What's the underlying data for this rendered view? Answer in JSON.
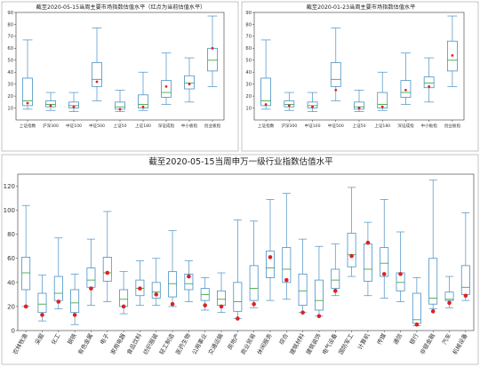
{
  "colors": {
    "box": "#4a90c4",
    "median": "#2ca02c",
    "mean": "#e02020",
    "axis": "#333333"
  },
  "chart_data": [
    {
      "type": "box",
      "title": "截至2020-05-15当周主要市场指数估值水平（红点为当前估值水平）",
      "xlabel": "",
      "ylabel": "",
      "ylim": [
        0,
        90
      ],
      "yticks": [
        10,
        20,
        30,
        40,
        50,
        60,
        70,
        80,
        90
      ],
      "grid": false,
      "categories": [
        "上证指数",
        "沪深300",
        "中证100",
        "中证500",
        "上证50",
        "上证180",
        "深证成指",
        "中小板指",
        "创业板指"
      ],
      "series": [
        {
          "min": 9,
          "q1": 12,
          "median": 16,
          "q3": 35,
          "max": 67,
          "mean": 14
        },
        {
          "min": 8,
          "q1": 11,
          "median": 13,
          "q3": 16,
          "max": 23,
          "mean": 12
        },
        {
          "min": 7,
          "q1": 10,
          "median": 12,
          "q3": 15,
          "max": 23,
          "mean": 11
        },
        {
          "min": 16,
          "q1": 28,
          "median": 34,
          "q3": 48,
          "max": 77,
          "mean": 32
        },
        {
          "min": 7,
          "q1": 9,
          "median": 11,
          "q3": 15,
          "max": 25,
          "mean": 9
        },
        {
          "min": 8,
          "q1": 10,
          "median": 13,
          "q3": 21,
          "max": 40,
          "mean": 11
        },
        {
          "min": 13,
          "q1": 19,
          "median": 23,
          "q3": 33,
          "max": 56,
          "mean": 28
        },
        {
          "min": 15,
          "q1": 26,
          "median": 31,
          "q3": 37,
          "max": 52,
          "mean": 30
        },
        {
          "min": 28,
          "q1": 41,
          "median": 50,
          "q3": 60,
          "max": 87,
          "mean": 60
        }
      ]
    },
    {
      "type": "box",
      "title": "截至2020-01-23当周主要市场指数估值水平",
      "xlabel": "",
      "ylabel": "",
      "ylim": [
        0,
        90
      ],
      "yticks": [
        10,
        20,
        30,
        40,
        50,
        60,
        70,
        80,
        90
      ],
      "grid": false,
      "categories": [
        "上证指数",
        "沪深300",
        "中证100",
        "中证500",
        "上证50",
        "上证180",
        "深证成指",
        "中小板指",
        "创业板指"
      ],
      "series": [
        {
          "min": 9,
          "q1": 12,
          "median": 16,
          "q3": 35,
          "max": 67,
          "mean": 13
        },
        {
          "min": 8,
          "q1": 11,
          "median": 13,
          "q3": 16,
          "max": 23,
          "mean": 12
        },
        {
          "min": 7,
          "q1": 10,
          "median": 12,
          "q3": 15,
          "max": 23,
          "mean": 11
        },
        {
          "min": 16,
          "q1": 28,
          "median": 34,
          "q3": 48,
          "max": 77,
          "mean": 25
        },
        {
          "min": 7,
          "q1": 9,
          "median": 11,
          "q3": 15,
          "max": 25,
          "mean": 10
        },
        {
          "min": 8,
          "q1": 10,
          "median": 13,
          "q3": 23,
          "max": 40,
          "mean": 11
        },
        {
          "min": 13,
          "q1": 19,
          "median": 23,
          "q3": 33,
          "max": 56,
          "mean": 25
        },
        {
          "min": 15,
          "q1": 27,
          "median": 31,
          "q3": 36,
          "max": 52,
          "mean": 28
        },
        {
          "min": 28,
          "q1": 41,
          "median": 50,
          "q3": 66,
          "max": 87,
          "mean": 54
        }
      ]
    },
    {
      "type": "box",
      "title": "截至2020-05-15当周申万一级行业指数估值水平",
      "xlabel": "",
      "ylabel": "",
      "ylim": [
        0,
        130
      ],
      "yticks": [
        0,
        20,
        40,
        60,
        80,
        100,
        120
      ],
      "grid": false,
      "categories": [
        "农林牧渔",
        "采掘",
        "化工",
        "钢铁",
        "有色金属",
        "电子",
        "家用电器",
        "食品饮料",
        "纺织服装",
        "轻工制造",
        "医药生物",
        "公用事业",
        "交通运输",
        "房地产",
        "商业贸易",
        "休闲服务",
        "综合",
        "建筑材料",
        "建筑装饰",
        "电气设备",
        "国防军工",
        "计算机",
        "传媒",
        "通信",
        "银行",
        "非银金融",
        "汽车",
        "机械设备"
      ],
      "series": [
        {
          "min": 20,
          "q1": 34,
          "median": 48,
          "q3": 61,
          "max": 104,
          "mean": 20
        },
        {
          "min": 8,
          "q1": 15,
          "median": 22,
          "q3": 31,
          "max": 46,
          "mean": 13
        },
        {
          "min": 18,
          "q1": 25,
          "median": 31,
          "q3": 45,
          "max": 77,
          "mean": 24
        },
        {
          "min": 5,
          "q1": 15,
          "median": 23,
          "q3": 34,
          "max": 47,
          "mean": 13
        },
        {
          "min": 21,
          "q1": 36,
          "median": 42,
          "q3": 52,
          "max": 76,
          "mean": 35
        },
        {
          "min": 24,
          "q1": 41,
          "median": 48,
          "q3": 61,
          "max": 99,
          "mean": 48
        },
        {
          "min": 14,
          "q1": 20,
          "median": 26,
          "q3": 34,
          "max": 49,
          "mean": 20
        },
        {
          "min": 21,
          "q1": 29,
          "median": 35,
          "q3": 42,
          "max": 58,
          "mean": 35
        },
        {
          "min": 21,
          "q1": 27,
          "median": 32,
          "q3": 40,
          "max": 60,
          "mean": 30
        },
        {
          "min": 20,
          "q1": 28,
          "median": 39,
          "q3": 49,
          "max": 83,
          "mean": 22
        },
        {
          "min": 24,
          "q1": 34,
          "median": 39,
          "q3": 47,
          "max": 58,
          "mean": 45
        },
        {
          "min": 17,
          "q1": 25,
          "median": 30,
          "q3": 35,
          "max": 44,
          "mean": 21
        },
        {
          "min": 15,
          "q1": 21,
          "median": 26,
          "q3": 33,
          "max": 48,
          "mean": 20
        },
        {
          "min": 10,
          "q1": 16,
          "median": 24,
          "q3": 40,
          "max": 92,
          "mean": 10
        },
        {
          "min": 19,
          "q1": 25,
          "median": 35,
          "q3": 54,
          "max": 91,
          "mean": 22
        },
        {
          "min": 25,
          "q1": 44,
          "median": 52,
          "q3": 66,
          "max": 109,
          "mean": 61
        },
        {
          "min": 26,
          "q1": 40,
          "median": 51,
          "q3": 69,
          "max": 114,
          "mean": 42
        },
        {
          "min": 15,
          "q1": 21,
          "median": 33,
          "q3": 47,
          "max": 76,
          "mean": 15
        },
        {
          "min": 12,
          "q1": 17,
          "median": 25,
          "q3": 42,
          "max": 70,
          "mean": 12
        },
        {
          "min": 29,
          "q1": 35,
          "median": 42,
          "q3": 51,
          "max": 72,
          "mean": 33
        },
        {
          "min": 45,
          "q1": 53,
          "median": 63,
          "q3": 81,
          "max": 119,
          "mean": 62
        },
        {
          "min": 29,
          "q1": 41,
          "median": 51,
          "q3": 72,
          "max": 90,
          "mean": 73
        },
        {
          "min": 27,
          "q1": 45,
          "median": 56,
          "q3": 69,
          "max": 109,
          "mean": 47
        },
        {
          "min": 24,
          "q1": 33,
          "median": 40,
          "q3": 48,
          "max": 82,
          "mean": 47
        },
        {
          "min": 4,
          "q1": 6,
          "median": 9,
          "q3": 31,
          "max": 44,
          "mean": 5
        },
        {
          "min": 18,
          "q1": 22,
          "median": 27,
          "q3": 60,
          "max": 125,
          "mean": 16
        },
        {
          "min": 19,
          "q1": 25,
          "median": 26,
          "q3": 32,
          "max": 45,
          "mean": 23
        },
        {
          "min": 25,
          "q1": 30,
          "median": 36,
          "q3": 54,
          "max": 98,
          "mean": 29
        }
      ]
    }
  ]
}
